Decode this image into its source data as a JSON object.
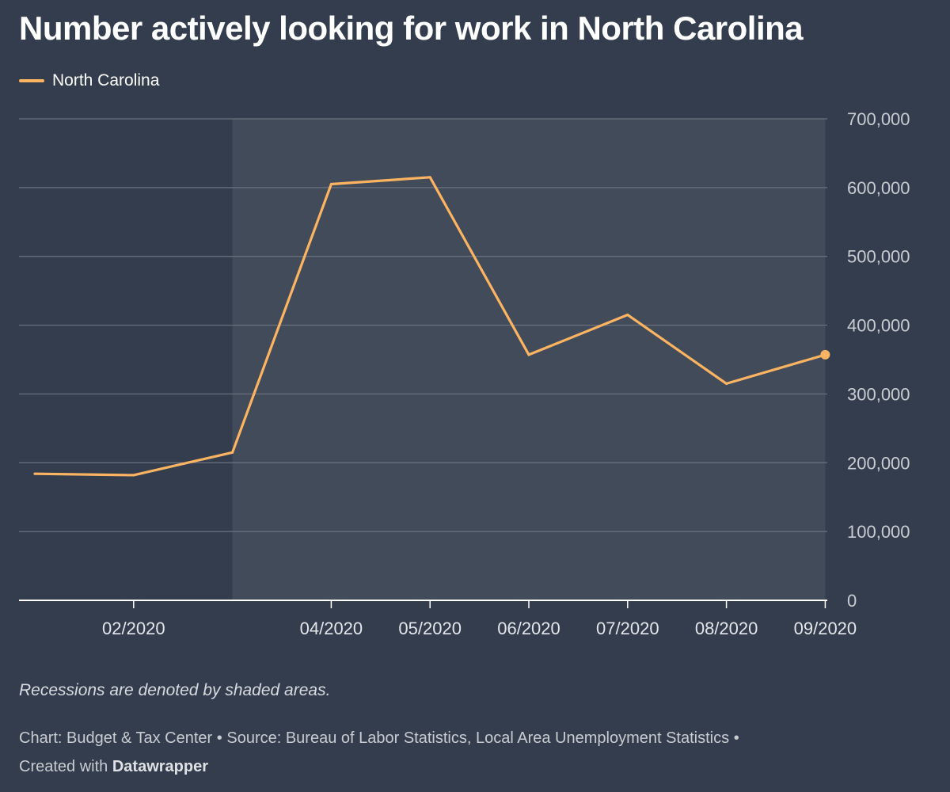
{
  "title": "Number actively looking for work in North Carolina",
  "legend": [
    {
      "label": "North Carolina",
      "color": "#fdb462"
    }
  ],
  "notes": "Recessions are denoted by shaded areas.",
  "footer": {
    "chart_by": "Chart: Budget & Tax Center",
    "separator": "•",
    "source": "Source: Bureau of Labor Statistics, Local Area Unemployment Statistics",
    "created_with": "Created with",
    "tool": "Datawrapper"
  },
  "colors": {
    "background": "#333d4d",
    "recession_shade": "#424b5a",
    "line": "#fdb462",
    "grid": "#6b7380",
    "axis_text": "#c9ccd1"
  },
  "chart_data": {
    "type": "line",
    "title": "Number actively looking for work in North Carolina",
    "xlabel": "",
    "ylabel": "",
    "ylim": [
      0,
      700000
    ],
    "y_ticks": [
      0,
      100000,
      200000,
      300000,
      400000,
      500000,
      600000,
      700000
    ],
    "y_tick_labels": [
      "0",
      "100,000",
      "200,000",
      "300,000",
      "400,000",
      "500,000",
      "600,000",
      "700,000"
    ],
    "x_tick_labels": [
      "02/2020",
      "04/2020",
      "05/2020",
      "06/2020",
      "07/2020",
      "08/2020",
      "09/2020"
    ],
    "x_tick_values": [
      "2020-02",
      "2020-04",
      "2020-05",
      "2020-06",
      "2020-07",
      "2020-08",
      "2020-09"
    ],
    "x": [
      "2020-01",
      "2020-02",
      "2020-03",
      "2020-04",
      "2020-05",
      "2020-06",
      "2020-07",
      "2020-08",
      "2020-09"
    ],
    "series": [
      {
        "name": "North Carolina",
        "values": [
          184000,
          182000,
          215000,
          605000,
          615000,
          357000,
          415000,
          315000,
          357000
        ]
      }
    ],
    "recession_shading": {
      "start": "2020-03",
      "end": "2020-09"
    },
    "grid": true,
    "legend_position": "top-left"
  }
}
